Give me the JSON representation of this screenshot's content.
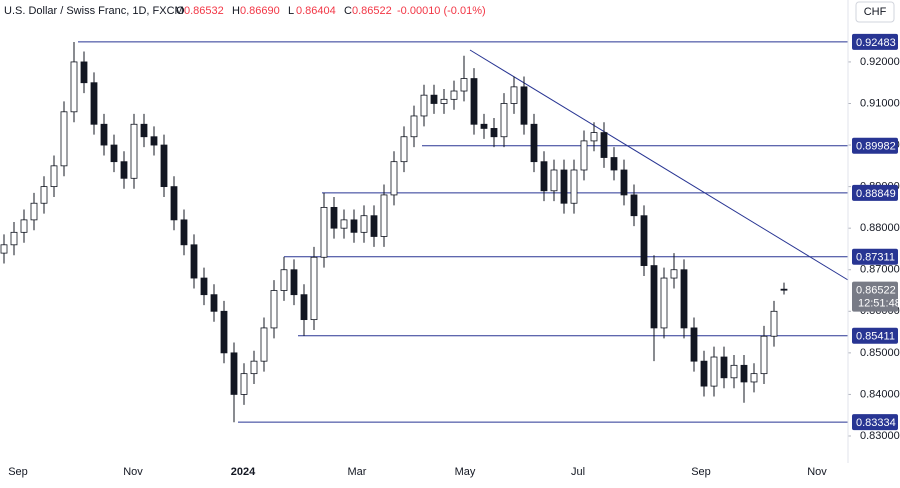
{
  "chart_data": {
    "type": "candlestick",
    "title": "U.S. Dollar / Swiss Franc, 1D, FXCM",
    "header_ohlc": [
      {
        "key": "O",
        "value": "0.86532"
      },
      {
        "key": "H",
        "value": "0.86690"
      },
      {
        "key": "L",
        "value": "0.86404"
      },
      {
        "key": "C",
        "value": "0.86522"
      }
    ],
    "change": "-0.00010 (-0.01%)",
    "currency_button": "CHF",
    "countdown": "12:51:48",
    "current_price": {
      "value": 0.86522,
      "label": "0.86522"
    },
    "x_labels": [
      "Sep",
      "Nov",
      "2024",
      "Mar",
      "May",
      "Jul",
      "Sep",
      "Nov"
    ],
    "ylim": [
      0.8235,
      0.9349
    ],
    "yticks": [
      {
        "value": 0.92,
        "label": "0.92000"
      },
      {
        "value": 0.91,
        "label": "0.91000"
      },
      {
        "value": 0.9,
        "label": "0.90000"
      },
      {
        "value": 0.89,
        "label": "0.89000"
      },
      {
        "value": 0.88,
        "label": "0.88000"
      },
      {
        "value": 0.87,
        "label": "0.87000"
      },
      {
        "value": 0.86,
        "label": "0.86000"
      },
      {
        "value": 0.85,
        "label": "0.85000"
      },
      {
        "value": 0.84,
        "label": "0.84000"
      },
      {
        "value": 0.83,
        "label": "0.83000"
      }
    ],
    "levels": [
      0.92483,
      0.89982,
      0.88849,
      0.87311,
      0.85411,
      0.83334
    ],
    "up_color": "#ffffff",
    "down_color": "#131722",
    "level_color": "#283593",
    "candles": [
      [
        0.874,
        0.8785,
        0.8715,
        0.876
      ],
      [
        0.876,
        0.8815,
        0.8735,
        0.879
      ],
      [
        0.879,
        0.8845,
        0.8765,
        0.882
      ],
      [
        0.882,
        0.8885,
        0.8795,
        0.886
      ],
      [
        0.886,
        0.8925,
        0.8835,
        0.89
      ],
      [
        0.89,
        0.8975,
        0.8875,
        0.895
      ],
      [
        0.895,
        0.9105,
        0.8925,
        0.908
      ],
      [
        0.908,
        0.9248,
        0.9055,
        0.92
      ],
      [
        0.92,
        0.9225,
        0.9125,
        0.915
      ],
      [
        0.915,
        0.9175,
        0.9025,
        0.905
      ],
      [
        0.905,
        0.9075,
        0.8975,
        0.9
      ],
      [
        0.9,
        0.9025,
        0.8935,
        0.896
      ],
      [
        0.896,
        0.8985,
        0.8895,
        0.892
      ],
      [
        0.892,
        0.9075,
        0.8895,
        0.905
      ],
      [
        0.905,
        0.9075,
        0.8995,
        0.902
      ],
      [
        0.902,
        0.9045,
        0.8975,
        0.9
      ],
      [
        0.9,
        0.9025,
        0.8875,
        0.89
      ],
      [
        0.89,
        0.8925,
        0.8795,
        0.882
      ],
      [
        0.882,
        0.8845,
        0.8735,
        0.876
      ],
      [
        0.876,
        0.8785,
        0.8655,
        0.868
      ],
      [
        0.868,
        0.8705,
        0.8615,
        0.864
      ],
      [
        0.864,
        0.8665,
        0.8575,
        0.86
      ],
      [
        0.86,
        0.8625,
        0.8475,
        0.85
      ],
      [
        0.85,
        0.8525,
        0.8333,
        0.84
      ],
      [
        0.84,
        0.8475,
        0.8375,
        0.845
      ],
      [
        0.845,
        0.8505,
        0.8425,
        0.848
      ],
      [
        0.848,
        0.8585,
        0.8455,
        0.856
      ],
      [
        0.856,
        0.8675,
        0.8535,
        0.865
      ],
      [
        0.865,
        0.8731,
        0.8625,
        0.87
      ],
      [
        0.87,
        0.8725,
        0.8615,
        0.864
      ],
      [
        0.864,
        0.8665,
        0.8541,
        0.858
      ],
      [
        0.858,
        0.8755,
        0.8555,
        0.873
      ],
      [
        0.873,
        0.8885,
        0.8705,
        0.885
      ],
      [
        0.885,
        0.8875,
        0.8775,
        0.88
      ],
      [
        0.88,
        0.8845,
        0.8775,
        0.882
      ],
      [
        0.882,
        0.8845,
        0.8765,
        0.879
      ],
      [
        0.879,
        0.8855,
        0.8765,
        0.883
      ],
      [
        0.883,
        0.8855,
        0.8755,
        0.878
      ],
      [
        0.878,
        0.8905,
        0.8755,
        0.888
      ],
      [
        0.888,
        0.8985,
        0.8855,
        0.896
      ],
      [
        0.896,
        0.9045,
        0.8935,
        0.902
      ],
      [
        0.902,
        0.9095,
        0.8995,
        0.907
      ],
      [
        0.907,
        0.9145,
        0.9045,
        0.912
      ],
      [
        0.912,
        0.9145,
        0.9075,
        0.91
      ],
      [
        0.91,
        0.9135,
        0.9075,
        0.911
      ],
      [
        0.911,
        0.9155,
        0.9085,
        0.913
      ],
      [
        0.913,
        0.9215,
        0.9105,
        0.916
      ],
      [
        0.916,
        0.9185,
        0.9025,
        0.905
      ],
      [
        0.905,
        0.9075,
        0.9015,
        0.904
      ],
      [
        0.904,
        0.9065,
        0.8995,
        0.902
      ],
      [
        0.902,
        0.9125,
        0.8995,
        0.91
      ],
      [
        0.91,
        0.9165,
        0.9075,
        0.914
      ],
      [
        0.914,
        0.9165,
        0.9025,
        0.905
      ],
      [
        0.905,
        0.9075,
        0.8935,
        0.896
      ],
      [
        0.896,
        0.8985,
        0.8865,
        0.889
      ],
      [
        0.889,
        0.8965,
        0.8865,
        0.894
      ],
      [
        0.894,
        0.8965,
        0.8835,
        0.886
      ],
      [
        0.886,
        0.8965,
        0.8835,
        0.894
      ],
      [
        0.894,
        0.9035,
        0.8915,
        0.901
      ],
      [
        0.901,
        0.9055,
        0.8985,
        0.903
      ],
      [
        0.903,
        0.9055,
        0.8945,
        0.897
      ],
      [
        0.897,
        0.8995,
        0.8915,
        0.894
      ],
      [
        0.894,
        0.8965,
        0.8855,
        0.888
      ],
      [
        0.888,
        0.8905,
        0.8805,
        0.883
      ],
      [
        0.883,
        0.8855,
        0.8685,
        0.871
      ],
      [
        0.871,
        0.8735,
        0.848,
        0.856
      ],
      [
        0.856,
        0.8705,
        0.8535,
        0.868
      ],
      [
        0.868,
        0.874,
        0.8655,
        0.87
      ],
      [
        0.87,
        0.8725,
        0.8535,
        0.856
      ],
      [
        0.856,
        0.8585,
        0.8455,
        0.848
      ],
      [
        0.848,
        0.8505,
        0.8395,
        0.842
      ],
      [
        0.842,
        0.8515,
        0.8395,
        0.849
      ],
      [
        0.849,
        0.8515,
        0.8415,
        0.844
      ],
      [
        0.844,
        0.8495,
        0.8415,
        0.847
      ],
      [
        0.847,
        0.8495,
        0.838,
        0.843
      ],
      [
        0.843,
        0.8475,
        0.8405,
        0.845
      ],
      [
        0.845,
        0.8565,
        0.8425,
        0.854
      ],
      [
        0.854,
        0.8625,
        0.8515,
        0.86
      ],
      [
        0.86532,
        0.8669,
        0.86404,
        0.86522
      ]
    ]
  }
}
